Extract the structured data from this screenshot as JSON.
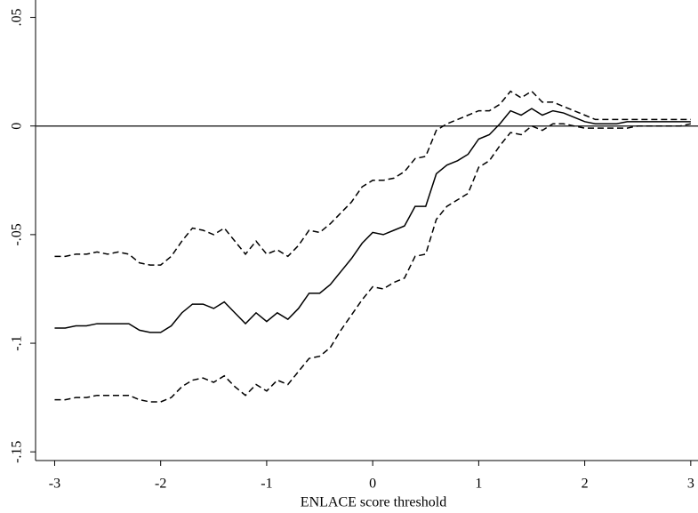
{
  "chart_data": {
    "type": "line",
    "x_label": "ENLACE score threshold",
    "x": [
      -3,
      -2.9,
      -2.8,
      -2.7,
      -2.6,
      -2.5,
      -2.4,
      -2.3,
      -2.2,
      -2.1,
      -2,
      -1.9,
      -1.8,
      -1.7,
      -1.6,
      -1.5,
      -1.4,
      -1.3,
      -1.2,
      -1.1,
      -1,
      -0.9,
      -0.8,
      -0.7,
      -0.6,
      -0.5,
      -0.4,
      -0.3,
      -0.2,
      -0.1,
      0,
      0.1,
      0.2,
      0.3,
      0.4,
      0.5,
      0.6,
      0.7,
      0.8,
      0.9,
      1,
      1.1,
      1.2,
      1.3,
      1.4,
      1.5,
      1.6,
      1.7,
      1.8,
      1.9,
      2,
      2.1,
      2.2,
      2.3,
      2.4,
      2.5,
      2.6,
      2.7,
      2.8,
      2.9,
      3
    ],
    "series": [
      {
        "color": "#000000",
        "dashed": false,
        "values": [
          -0.093,
          -0.093,
          -0.092,
          -0.092,
          -0.091,
          -0.091,
          -0.091,
          -0.091,
          -0.094,
          -0.095,
          -0.095,
          -0.092,
          -0.086,
          -0.082,
          -0.082,
          -0.084,
          -0.081,
          -0.086,
          -0.091,
          -0.086,
          -0.09,
          -0.086,
          -0.089,
          -0.084,
          -0.077,
          -0.077,
          -0.073,
          -0.067,
          -0.061,
          -0.054,
          -0.049,
          -0.05,
          -0.048,
          -0.046,
          -0.037,
          -0.037,
          -0.022,
          -0.018,
          -0.016,
          -0.013,
          -0.006,
          -0.004,
          0.001,
          0.007,
          0.005,
          0.008,
          0.005,
          0.007,
          0.006,
          0.004,
          0.002,
          0.001,
          0.001,
          0.001,
          0.002,
          0.002,
          0.002,
          0.002,
          0.002,
          0.002,
          0.002
        ]
      },
      {
        "color": "#000000",
        "dashed": true,
        "values": [
          -0.06,
          -0.06,
          -0.059,
          -0.059,
          -0.058,
          -0.059,
          -0.058,
          -0.059,
          -0.063,
          -0.064,
          -0.064,
          -0.06,
          -0.053,
          -0.047,
          -0.048,
          -0.05,
          -0.047,
          -0.053,
          -0.059,
          -0.053,
          -0.059,
          -0.057,
          -0.06,
          -0.055,
          -0.048,
          -0.049,
          -0.045,
          -0.04,
          -0.035,
          -0.028,
          -0.025,
          -0.025,
          -0.024,
          -0.021,
          -0.015,
          -0.014,
          -0.002,
          0.001,
          0.003,
          0.005,
          0.007,
          0.007,
          0.01,
          0.016,
          0.013,
          0.016,
          0.011,
          0.011,
          0.009,
          0.007,
          0.005,
          0.003,
          0.003,
          0.003,
          0.003,
          0.003,
          0.003,
          0.003,
          0.003,
          0.003,
          0.003
        ]
      },
      {
        "color": "#000000",
        "dashed": true,
        "values": [
          -0.126,
          -0.126,
          -0.125,
          -0.125,
          -0.124,
          -0.124,
          -0.124,
          -0.124,
          -0.126,
          -0.127,
          -0.127,
          -0.125,
          -0.12,
          -0.117,
          -0.116,
          -0.118,
          -0.115,
          -0.12,
          -0.124,
          -0.119,
          -0.122,
          -0.117,
          -0.119,
          -0.113,
          -0.107,
          -0.106,
          -0.102,
          -0.094,
          -0.087,
          -0.08,
          -0.074,
          -0.075,
          -0.072,
          -0.07,
          -0.06,
          -0.059,
          -0.043,
          -0.037,
          -0.034,
          -0.031,
          -0.019,
          -0.016,
          -0.009,
          -0.003,
          -0.004,
          0,
          -0.002,
          0.001,
          0.001,
          0,
          -0.001,
          -0.001,
          -0.001,
          -0.001,
          -0.001,
          0,
          0,
          0,
          0,
          0,
          0.001
        ]
      }
    ],
    "reference_line": 0,
    "xlim": [
      -3.18,
      3.06
    ],
    "xticks": [
      -3,
      -2,
      -1,
      0,
      1,
      2,
      3
    ],
    "ylim": [
      -0.154,
      0.058
    ],
    "yticks": [
      {
        "value": 0.05,
        "label": ".05"
      },
      0,
      {
        "value": -0.05,
        "label": "-.05"
      },
      {
        "value": -0.1,
        "label": "-.1"
      },
      {
        "value": -0.15,
        "label": "-.15"
      }
    ]
  }
}
